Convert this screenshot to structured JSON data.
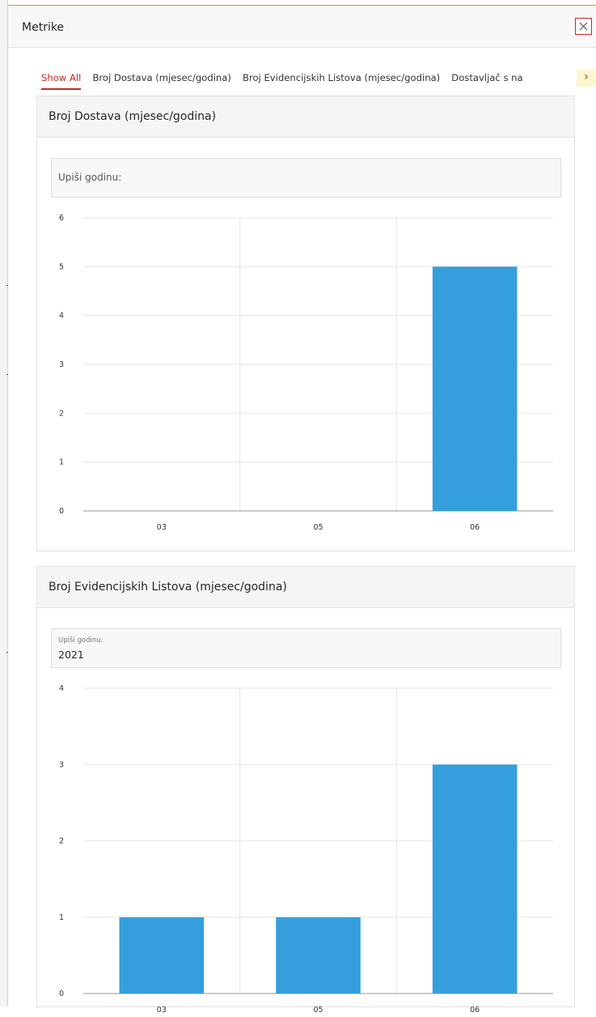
{
  "dialog": {
    "title": "Metrike",
    "close_label": "×"
  },
  "tabs": {
    "items": [
      {
        "label": "Show All",
        "active": true
      },
      {
        "label": "Broj Dostava (mjesec/godina)",
        "active": false
      },
      {
        "label": "Broj Evidencijskih Listova (mjesec/godina)",
        "active": false
      },
      {
        "label": "Dostavljač s na",
        "active": false
      }
    ],
    "scroll_icon": "chevron-right-icon"
  },
  "panels": [
    {
      "title": "Broj Dostava (mjesec/godina)",
      "year_field": {
        "label": "Upiši godinu:",
        "value": ""
      }
    },
    {
      "title": "Broj Evidencijskih Listova (mjesec/godina)",
      "year_field": {
        "label": "Upiši godinu:",
        "value": "2021"
      }
    }
  ],
  "colors": {
    "bar": "#349fdc",
    "accent": "#c62828",
    "grid": "#e6e6e6"
  },
  "chart_data": [
    {
      "type": "bar",
      "categories": [
        "03",
        "05",
        "06"
      ],
      "values": [
        0,
        0,
        5
      ],
      "title": "Broj Dostava (mjesec/godina)",
      "xlabel": "",
      "ylabel": "",
      "ylim": [
        0,
        6
      ],
      "yticks": [
        0,
        1,
        2,
        3,
        4,
        5,
        6
      ],
      "grid": true
    },
    {
      "type": "bar",
      "categories": [
        "03",
        "05",
        "06"
      ],
      "values": [
        1,
        1,
        3
      ],
      "title": "Broj Evidencijskih Listova (mjesec/godina)",
      "xlabel": "",
      "ylabel": "",
      "ylim": [
        0,
        4
      ],
      "yticks": [
        0,
        1,
        2,
        3,
        4
      ],
      "grid": true
    }
  ]
}
